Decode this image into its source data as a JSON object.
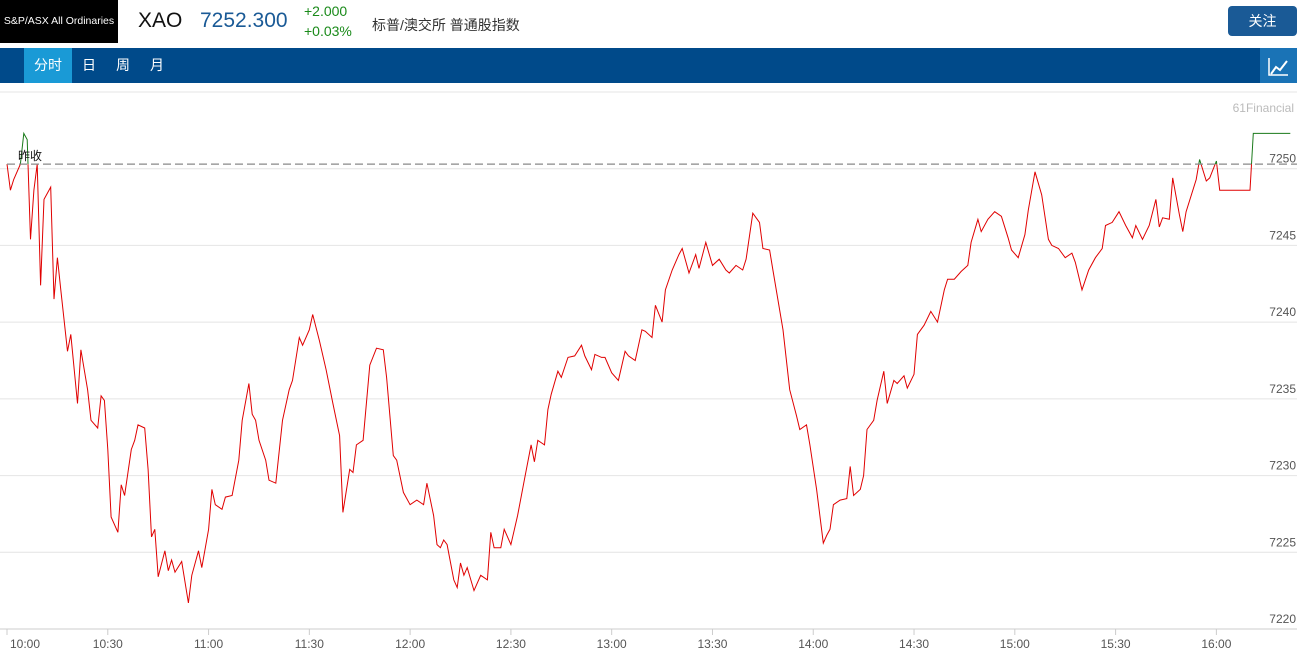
{
  "header": {
    "name": "S&P/ASX All Ordinaries",
    "symbol": "XAO",
    "price": "7252.300",
    "change": "+2.000",
    "change_pct": "+0.03%",
    "description": "标普/澳交所 普通股指数",
    "follow": "关注"
  },
  "tabs": [
    "分时",
    "日",
    "周",
    "月"
  ],
  "watermark": "61Financial",
  "chart_data": {
    "type": "line",
    "x": [
      "10:00",
      "10:01",
      "10:02",
      "10:04",
      "10:05",
      "10:06",
      "10:07",
      "10:08",
      "10:09",
      "10:10",
      "10:11",
      "10:13",
      "10:14",
      "10:15",
      "10:16",
      "10:18",
      "10:19",
      "10:21",
      "10:22",
      "10:24",
      "10:25",
      "10:27",
      "10:28",
      "10:29",
      "10:30",
      "10:31",
      "10:33",
      "10:34",
      "10:35",
      "10:37",
      "10:38",
      "10:39",
      "10:41",
      "10:42",
      "10:43",
      "10:44",
      "10:45",
      "10:47",
      "10:48",
      "10:49",
      "10:50",
      "10:52",
      "10:54",
      "10:55",
      "10:57",
      "10:58",
      "11:00",
      "11:01",
      "11:02",
      "11:04",
      "11:05",
      "11:07",
      "11:09",
      "11:10",
      "11:12",
      "11:13",
      "11:14",
      "11:15",
      "11:17",
      "11:18",
      "11:20",
      "11:22",
      "11:24",
      "11:25",
      "11:27",
      "11:28",
      "11:30",
      "11:31",
      "11:33",
      "11:35",
      "11:37",
      "11:39",
      "11:40",
      "11:42",
      "11:43",
      "11:44",
      "11:46",
      "11:48",
      "11:50",
      "11:52",
      "11:53",
      "11:55",
      "11:56",
      "11:58",
      "12:00",
      "12:02",
      "12:04",
      "12:05",
      "12:07",
      "12:08",
      "12:09",
      "12:10",
      "12:11",
      "12:13",
      "12:14",
      "12:15",
      "12:16",
      "12:17",
      "12:19",
      "12:21",
      "12:23",
      "12:24",
      "12:25",
      "12:27",
      "12:28",
      "12:30",
      "12:32",
      "12:34",
      "12:36",
      "12:37",
      "12:38",
      "12:40",
      "12:41",
      "12:42",
      "12:44",
      "12:45",
      "12:47",
      "12:49",
      "12:51",
      "12:52",
      "12:54",
      "12:55",
      "12:57",
      "12:58",
      "13:00",
      "13:02",
      "13:04",
      "13:05",
      "13:07",
      "13:09",
      "13:10",
      "13:12",
      "13:13",
      "13:15",
      "13:16",
      "13:18",
      "13:20",
      "13:21",
      "13:23",
      "13:25",
      "13:26",
      "13:28",
      "13:30",
      "13:32",
      "13:34",
      "13:35",
      "13:37",
      "13:39",
      "13:40",
      "13:42",
      "13:44",
      "13:45",
      "13:47",
      "13:48",
      "13:51",
      "13:53",
      "13:55",
      "13:56",
      "13:58",
      "13:59",
      "14:01",
      "14:03",
      "14:04",
      "14:05",
      "14:06",
      "14:08",
      "14:10",
      "14:11",
      "14:12",
      "14:14",
      "14:15",
      "14:16",
      "14:18",
      "14:19",
      "14:21",
      "14:22",
      "14:24",
      "14:25",
      "14:27",
      "14:28",
      "14:30",
      "14:31",
      "14:33",
      "14:35",
      "14:37",
      "14:39",
      "14:40",
      "14:42",
      "14:44",
      "14:46",
      "14:47",
      "14:49",
      "14:50",
      "14:52",
      "14:54",
      "14:56",
      "14:58",
      "14:59",
      "15:01",
      "15:03",
      "15:04",
      "15:06",
      "15:08",
      "15:10",
      "15:11",
      "15:13",
      "15:15",
      "15:17",
      "15:18",
      "15:20",
      "15:22",
      "15:24",
      "15:26",
      "15:27",
      "15:29",
      "15:31",
      "15:33",
      "15:35",
      "15:36",
      "15:38",
      "15:40",
      "15:42",
      "15:43",
      "15:44",
      "15:46",
      "15:47",
      "15:49",
      "15:50",
      "15:51",
      "15:54",
      "15:55",
      "15:57",
      "15:58",
      "16:00",
      "16:01",
      "16:03",
      "16:10",
      "16:11",
      "16:22"
    ],
    "values": [
      7250.3,
      7248.6,
      7249.3,
      7250.3,
      7252.3,
      7251.9,
      7245.4,
      7248.6,
      7250.3,
      7242.4,
      7248.0,
      7248.8,
      7241.5,
      7244.2,
      7242.1,
      7238.1,
      7239.2,
      7234.7,
      7238.2,
      7235.6,
      7233.6,
      7233.1,
      7235.2,
      7234.9,
      7231.7,
      7227.3,
      7226.3,
      7229.4,
      7228.7,
      7231.7,
      7232.3,
      7233.3,
      7233.1,
      7230.4,
      7226.0,
      7226.5,
      7223.4,
      7225.1,
      7223.8,
      7224.5,
      7223.7,
      7224.4,
      7221.7,
      7223.5,
      7225.1,
      7224.0,
      7226.5,
      7229.1,
      7228.1,
      7227.8,
      7228.6,
      7228.7,
      7231.0,
      7233.6,
      7236.0,
      7234.0,
      7233.6,
      7232.3,
      7231.0,
      7229.7,
      7229.5,
      7233.6,
      7235.6,
      7236.2,
      7239.0,
      7238.5,
      7239.5,
      7240.5,
      7238.8,
      7236.9,
      7234.7,
      7232.6,
      7227.6,
      7230.4,
      7230.2,
      7232.0,
      7232.3,
      7237.2,
      7238.3,
      7238.2,
      7236.4,
      7231.3,
      7231.0,
      7228.9,
      7228.1,
      7228.4,
      7228.1,
      7229.5,
      7227.4,
      7225.5,
      7225.3,
      7225.8,
      7225.5,
      7223.2,
      7222.7,
      7224.3,
      7223.5,
      7224.0,
      7222.5,
      7223.5,
      7223.2,
      7226.3,
      7225.3,
      7225.3,
      7226.5,
      7225.5,
      7227.4,
      7229.7,
      7232.0,
      7230.9,
      7232.3,
      7232.0,
      7234.3,
      7235.3,
      7236.8,
      7236.4,
      7237.7,
      7237.8,
      7238.5,
      7237.8,
      7236.9,
      7237.9,
      7237.7,
      7237.7,
      7236.7,
      7236.2,
      7238.1,
      7237.8,
      7237.5,
      7239.5,
      7239.4,
      7239.0,
      7241.1,
      7240.0,
      7242.1,
      7243.4,
      7244.4,
      7244.8,
      7243.2,
      7244.4,
      7243.5,
      7245.2,
      7243.7,
      7244.1,
      7243.4,
      7243.2,
      7243.7,
      7243.4,
      7244.1,
      7247.1,
      7246.5,
      7244.8,
      7244.7,
      7243.4,
      7239.5,
      7235.6,
      7233.9,
      7233.0,
      7233.3,
      7232.0,
      7229.1,
      7225.6,
      7226.1,
      7226.5,
      7228.1,
      7228.4,
      7228.5,
      7230.6,
      7228.7,
      7229.1,
      7230.0,
      7233.0,
      7233.6,
      7234.9,
      7236.8,
      7234.7,
      7236.2,
      7236.0,
      7236.5,
      7235.7,
      7236.6,
      7239.2,
      7239.8,
      7240.7,
      7240.0,
      7242.1,
      7242.8,
      7242.8,
      7243.3,
      7243.7,
      7245.2,
      7246.7,
      7245.9,
      7246.7,
      7247.2,
      7246.9,
      7245.5,
      7244.7,
      7244.2,
      7245.7,
      7247.3,
      7249.8,
      7248.3,
      7245.4,
      7245.0,
      7244.8,
      7244.2,
      7244.5,
      7243.9,
      7242.1,
      7243.4,
      7244.2,
      7244.8,
      7246.3,
      7246.5,
      7247.2,
      7246.3,
      7245.5,
      7246.3,
      7245.4,
      7246.3,
      7248.0,
      7246.2,
      7246.8,
      7246.7,
      7249.4,
      7247.0,
      7245.9,
      7247.2,
      7249.3,
      7250.6,
      7249.2,
      7249.4,
      7250.5,
      7248.6,
      7248.6,
      7248.6,
      7252.3,
      7252.3
    ],
    "color_up": "#1a7a1a",
    "color_down": "#e00000",
    "prev_close": 7250.3,
    "prev_close_label": "昨收",
    "xlim": [
      "10:00",
      "16:24"
    ],
    "xticks": [
      "10:00",
      "10:30",
      "11:00",
      "11:30",
      "12:00",
      "12:30",
      "13:00",
      "13:30",
      "14:00",
      "14:30",
      "15:00",
      "15:30",
      "16:00"
    ],
    "ylim": [
      7220,
      7255
    ],
    "yticks": [
      7220,
      7225,
      7230,
      7235,
      7240,
      7245,
      7250
    ],
    "grid": true
  }
}
